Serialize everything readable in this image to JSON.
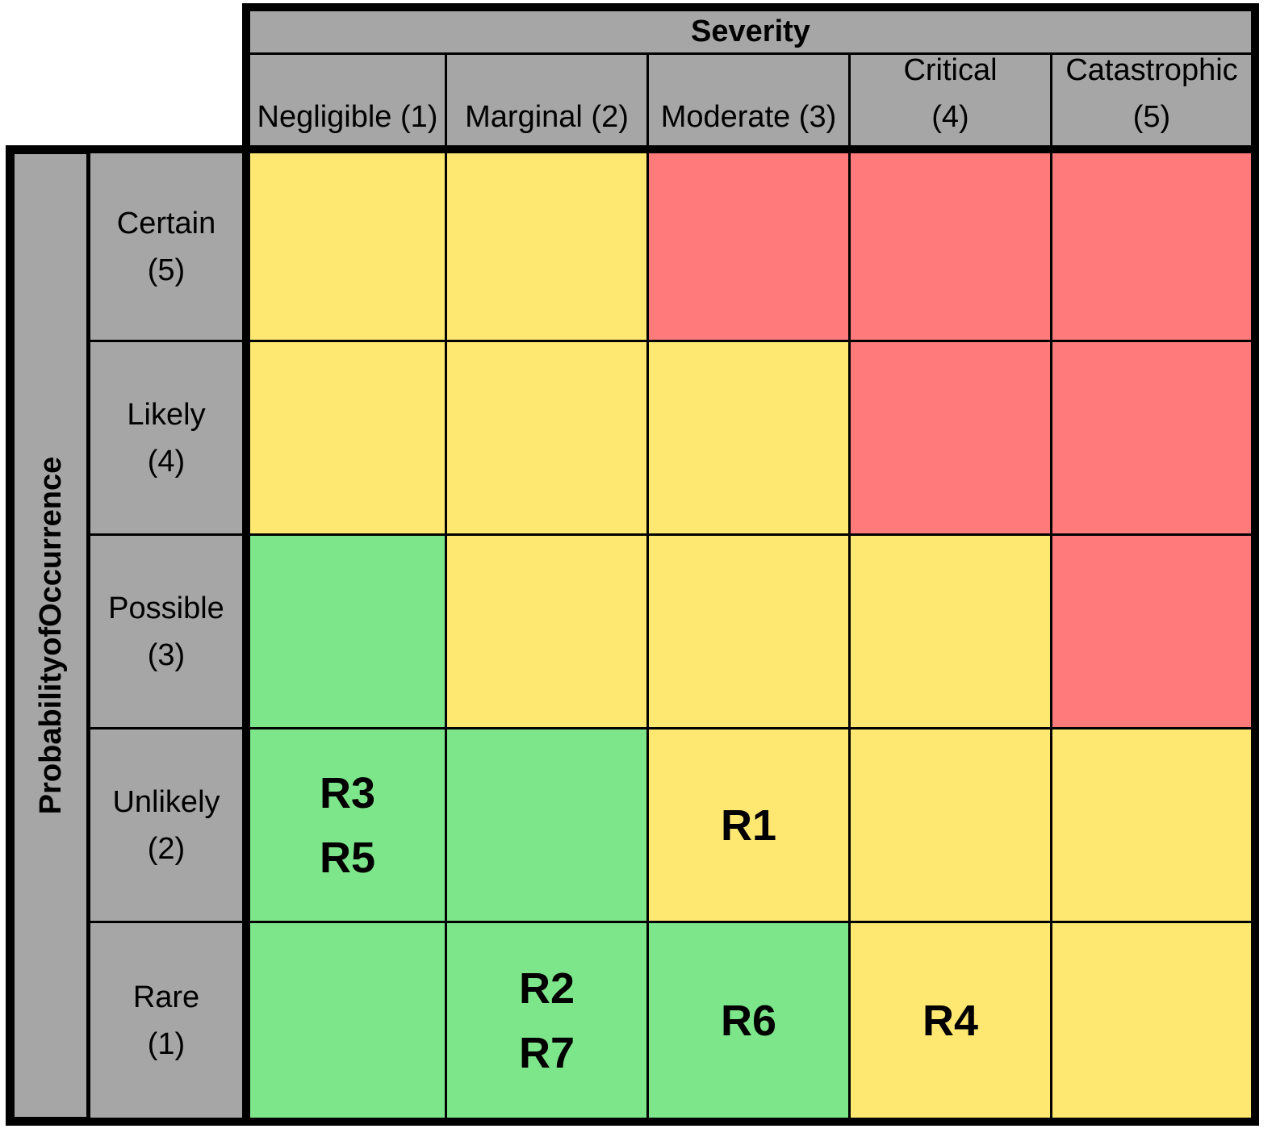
{
  "severity_axis": {
    "title": "Severity",
    "levels": [
      {
        "line1": "Negligible (1)",
        "line2": ""
      },
      {
        "line1": "Marginal  (2)",
        "line2": ""
      },
      {
        "line1": "Moderate (3)",
        "line2": ""
      },
      {
        "line1": "Critical",
        "line2": "(4)"
      },
      {
        "line1": "Catastrophic",
        "line2": "(5)"
      }
    ]
  },
  "probability_axis": {
    "title_words": [
      "Probability",
      "of",
      "Occurrence"
    ],
    "levels": [
      {
        "line1": "Certain",
        "line2": "(5)"
      },
      {
        "line1": "Likely",
        "line2": "(4)"
      },
      {
        "line1": "Possible",
        "line2": "(3)"
      },
      {
        "line1": "Unlikely",
        "line2": "(2)"
      },
      {
        "line1": "Rare",
        "line2": "(1)"
      }
    ]
  },
  "colors": {
    "header_gray": "#a6a6a6",
    "low_green": "#7ee68a",
    "medium_yellow": "#fee871",
    "high_red": "#ff7b7b"
  },
  "matrix": [
    [
      {
        "level": "yellow",
        "risks": []
      },
      {
        "level": "yellow",
        "risks": []
      },
      {
        "level": "red",
        "risks": []
      },
      {
        "level": "red",
        "risks": []
      },
      {
        "level": "red",
        "risks": []
      }
    ],
    [
      {
        "level": "yellow",
        "risks": []
      },
      {
        "level": "yellow",
        "risks": []
      },
      {
        "level": "yellow",
        "risks": []
      },
      {
        "level": "red",
        "risks": []
      },
      {
        "level": "red",
        "risks": []
      }
    ],
    [
      {
        "level": "green",
        "risks": []
      },
      {
        "level": "yellow",
        "risks": []
      },
      {
        "level": "yellow",
        "risks": []
      },
      {
        "level": "yellow",
        "risks": []
      },
      {
        "level": "red",
        "risks": []
      }
    ],
    [
      {
        "level": "green",
        "risks": [
          "R3",
          "R5"
        ]
      },
      {
        "level": "green",
        "risks": []
      },
      {
        "level": "yellow",
        "risks": [
          "R1"
        ]
      },
      {
        "level": "yellow",
        "risks": []
      },
      {
        "level": "yellow",
        "risks": []
      }
    ],
    [
      {
        "level": "green",
        "risks": []
      },
      {
        "level": "green",
        "risks": [
          "R2",
          "R7"
        ]
      },
      {
        "level": "green",
        "risks": [
          "R6"
        ]
      },
      {
        "level": "yellow",
        "risks": [
          "R4"
        ]
      },
      {
        "level": "yellow",
        "risks": []
      }
    ]
  ]
}
